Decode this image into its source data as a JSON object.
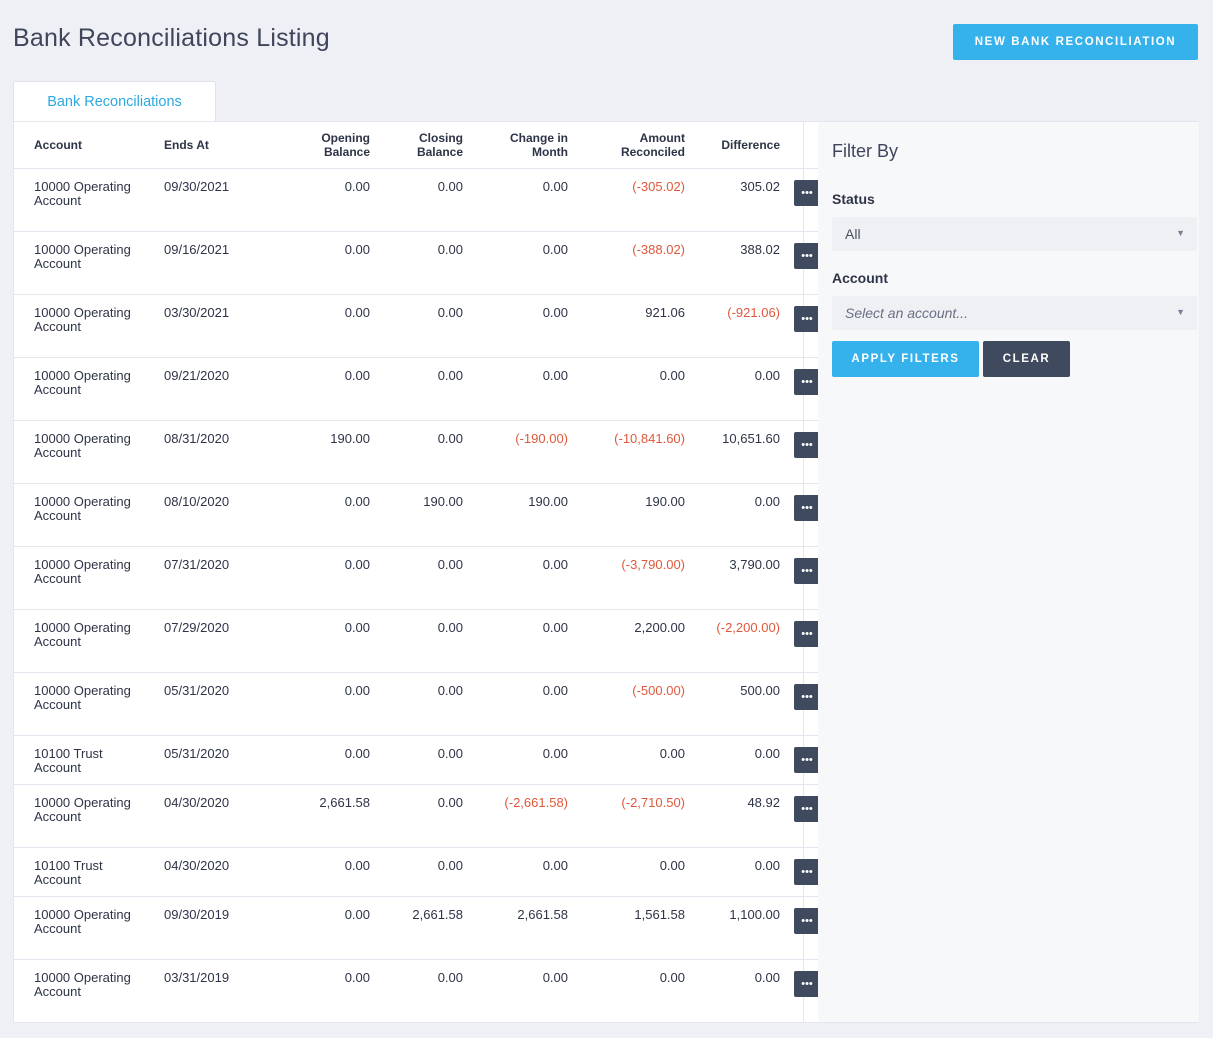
{
  "page": {
    "title": "Bank Reconciliations Listing",
    "new_button": "NEW BANK RECONCILIATION"
  },
  "tabs": [
    {
      "label": "Bank Reconciliations"
    }
  ],
  "table": {
    "headers": {
      "account": "Account",
      "ends_at": "Ends At",
      "opening_1": "Opening",
      "opening_2": "Balance",
      "closing_1": "Closing",
      "closing_2": "Balance",
      "change_1": "Change in",
      "change_2": "Month",
      "amount_1": "Amount",
      "amount_2": "Reconciled",
      "difference": "Difference"
    },
    "rows": [
      {
        "account": "10000 Operating Account",
        "ends_at": "09/30/2021",
        "opening": "0.00",
        "closing": "0.00",
        "change": "0.00",
        "amount": "(-305.02)",
        "difference": "305.02"
      },
      {
        "account": "10000 Operating Account",
        "ends_at": "09/16/2021",
        "opening": "0.00",
        "closing": "0.00",
        "change": "0.00",
        "amount": "(-388.02)",
        "difference": "388.02"
      },
      {
        "account": "10000 Operating Account",
        "ends_at": "03/30/2021",
        "opening": "0.00",
        "closing": "0.00",
        "change": "0.00",
        "amount": "921.06",
        "difference": "(-921.06)"
      },
      {
        "account": "10000 Operating Account",
        "ends_at": "09/21/2020",
        "opening": "0.00",
        "closing": "0.00",
        "change": "0.00",
        "amount": "0.00",
        "difference": "0.00"
      },
      {
        "account": "10000 Operating Account",
        "ends_at": "08/31/2020",
        "opening": "190.00",
        "closing": "0.00",
        "change": "(-190.00)",
        "amount": "(-10,841.60)",
        "difference": "10,651.60"
      },
      {
        "account": "10000 Operating Account",
        "ends_at": "08/10/2020",
        "opening": "0.00",
        "closing": "190.00",
        "change": "190.00",
        "amount": "190.00",
        "difference": "0.00"
      },
      {
        "account": "10000 Operating Account",
        "ends_at": "07/31/2020",
        "opening": "0.00",
        "closing": "0.00",
        "change": "0.00",
        "amount": "(-3,790.00)",
        "difference": "3,790.00"
      },
      {
        "account": "10000 Operating Account",
        "ends_at": "07/29/2020",
        "opening": "0.00",
        "closing": "0.00",
        "change": "0.00",
        "amount": "2,200.00",
        "difference": "(-2,200.00)"
      },
      {
        "account": "10000 Operating Account",
        "ends_at": "05/31/2020",
        "opening": "0.00",
        "closing": "0.00",
        "change": "0.00",
        "amount": "(-500.00)",
        "difference": "500.00"
      },
      {
        "account": "10100 Trust Account",
        "ends_at": "05/31/2020",
        "opening": "0.00",
        "closing": "0.00",
        "change": "0.00",
        "amount": "0.00",
        "difference": "0.00"
      },
      {
        "account": "10000 Operating Account",
        "ends_at": "04/30/2020",
        "opening": "2,661.58",
        "closing": "0.00",
        "change": "(-2,661.58)",
        "amount": "(-2,710.50)",
        "difference": "48.92"
      },
      {
        "account": "10100 Trust Account",
        "ends_at": "04/30/2020",
        "opening": "0.00",
        "closing": "0.00",
        "change": "0.00",
        "amount": "0.00",
        "difference": "0.00"
      },
      {
        "account": "10000 Operating Account",
        "ends_at": "09/30/2019",
        "opening": "0.00",
        "closing": "2,661.58",
        "change": "2,661.58",
        "amount": "1,561.58",
        "difference": "1,100.00"
      },
      {
        "account": "10000 Operating Account",
        "ends_at": "03/31/2019",
        "opening": "0.00",
        "closing": "0.00",
        "change": "0.00",
        "amount": "0.00",
        "difference": "0.00"
      }
    ],
    "action_icon": "ellipsis-icon",
    "action_glyph": "•••"
  },
  "filter": {
    "title": "Filter By",
    "status_label": "Status",
    "status_value": "All",
    "account_label": "Account",
    "account_placeholder": "Select an account...",
    "apply_button": "APPLY FILTERS",
    "clear_button": "CLEAR"
  },
  "colors": {
    "accent": "#35b1ec",
    "dark_button": "#3f4a5e",
    "negative": "#e0583c"
  }
}
